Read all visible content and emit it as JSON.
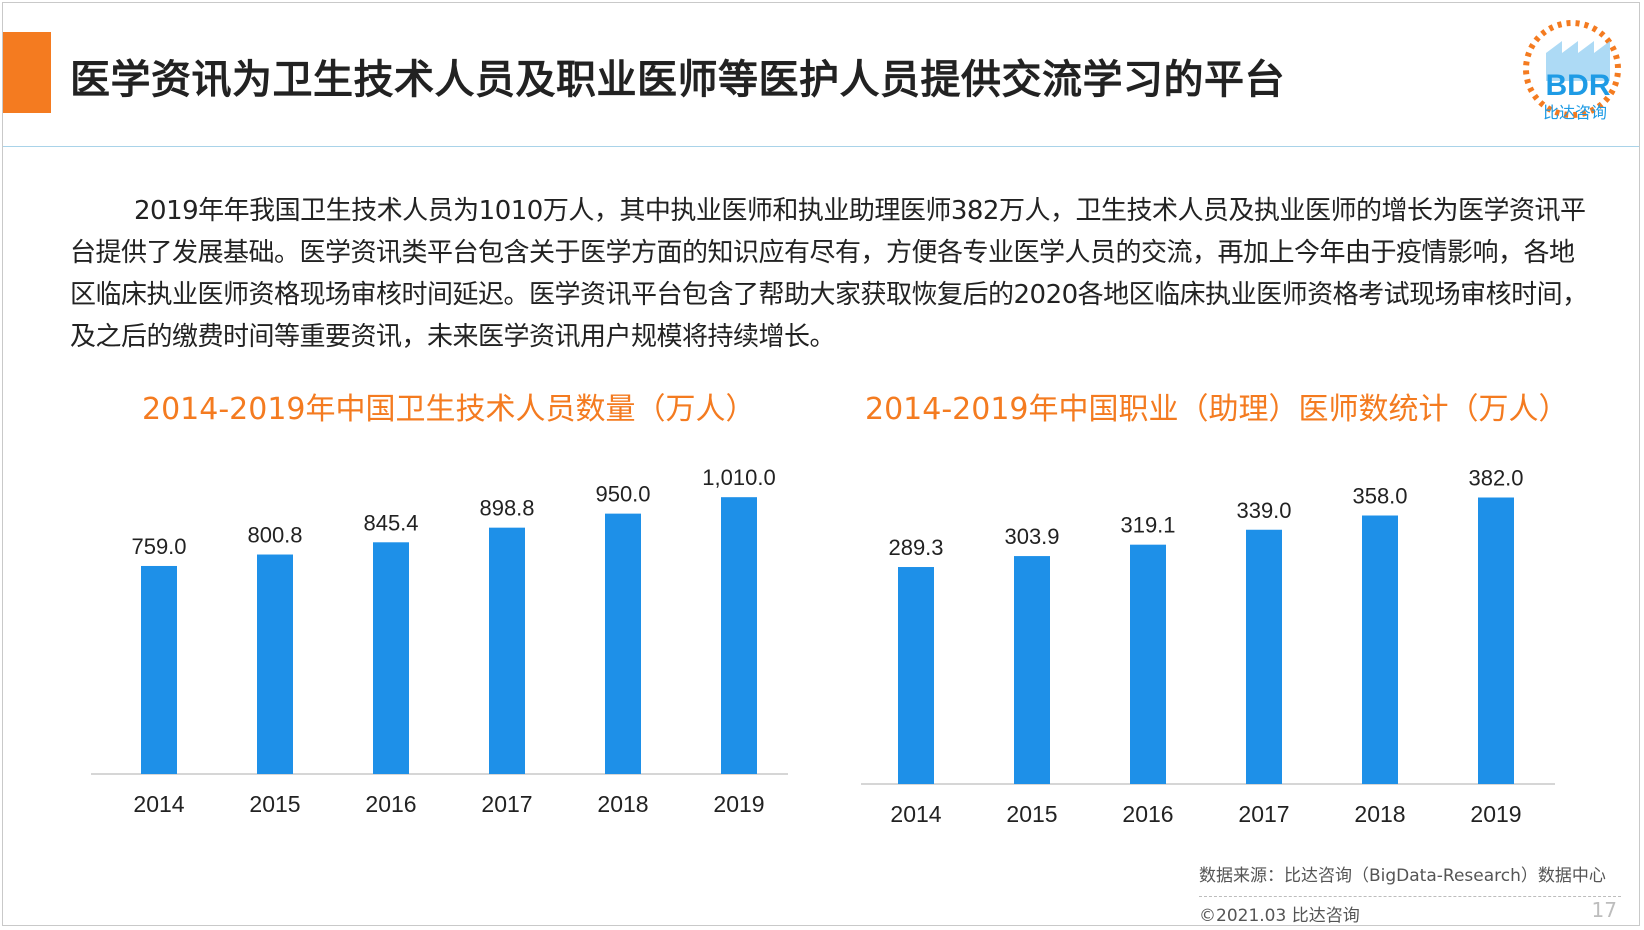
{
  "header": {
    "title": "医学资讯为卫生技术人员及职业医师等医护人员提供交流学习的平台",
    "accent_color": "#f47b20",
    "logo_text": "BDR",
    "logo_caption": "比达咨询"
  },
  "intro_text": "2019年年我国卫生技术人员为1010万人，其中执业医师和执业助理医师382万人，卫生技术人员及执业医师的增长为医学资讯平台提供了发展基础。医学资讯类平台包含关于医学方面的知识应有尽有，方便各专业医学人员的交流，再加上今年由于疫情影响，各地区临床执业医师资格现场审核时间延迟。医学资讯平台包含了帮助大家获取恢复后的2020各地区临床执业医师资格考试现场审核时间，及之后的缴费时间等重要资讯，未来医学资讯用户规模将持续增长。",
  "chart_data": [
    {
      "type": "bar",
      "title": "2014-2019年中国卫生技术人员数量（万人）",
      "categories": [
        "2014",
        "2015",
        "2016",
        "2017",
        "2018",
        "2019"
      ],
      "values": [
        759.0,
        800.8,
        845.4,
        898.8,
        950.0,
        1010.0
      ],
      "value_labels": [
        "759.0",
        "800.8",
        "845.4",
        "898.8",
        "950.0",
        "1,010.0"
      ],
      "bar_color": "#1e90e8",
      "ylim": [
        0,
        1080
      ],
      "grid": false,
      "legend": "none"
    },
    {
      "type": "bar",
      "title": "2014-2019年中国职业（助理）医师数统计（万人）",
      "categories": [
        "2014",
        "2015",
        "2016",
        "2017",
        "2018",
        "2019"
      ],
      "values": [
        289.3,
        303.9,
        319.1,
        339.0,
        358.0,
        382.0
      ],
      "value_labels": [
        "289.3",
        "303.9",
        "319.1",
        "339.0",
        "358.0",
        "382.0"
      ],
      "bar_color": "#1e90e8",
      "ylim": [
        0,
        408
      ],
      "grid": false,
      "legend": "none"
    }
  ],
  "footer": {
    "source": "数据来源：比达咨询（BigData-Research）数据中心",
    "copyright": "©2021.03 比达咨询",
    "page_number": "17"
  }
}
